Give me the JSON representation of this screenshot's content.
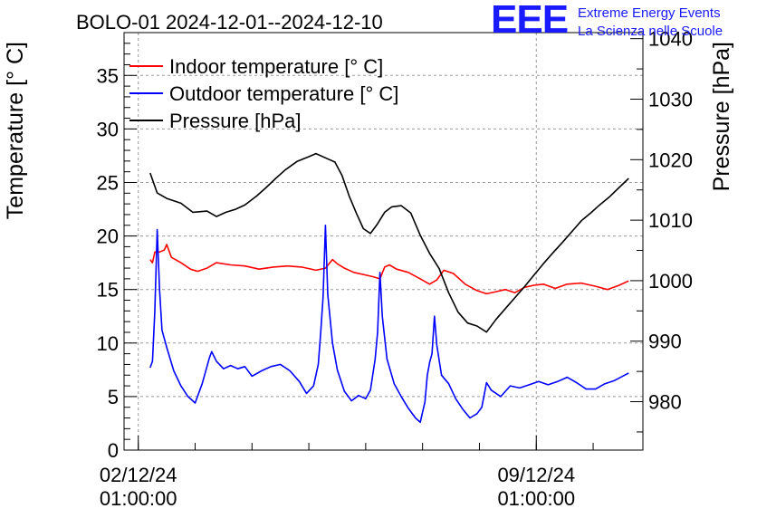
{
  "chart_data": {
    "type": "line",
    "title": "BOLO-01 2024-12-01--2024-12-10",
    "ylabel": "Temperature [° C]",
    "y2label": "Pressure [hPa]",
    "xlabel": "",
    "ylim": [
      0,
      39
    ],
    "y2lim": [
      972,
      1041
    ],
    "xlim": [
      "2024-12-01T19:00",
      "2024-12-10T22:00"
    ],
    "grid": true,
    "legend_position": "top-left",
    "yticks": [
      0,
      5,
      10,
      15,
      20,
      25,
      30,
      35
    ],
    "y2ticks": [
      980,
      990,
      1000,
      1010,
      1020,
      1030,
      1040
    ],
    "xticks": [
      {
        "t": "2024-12-02T01:00",
        "date": "02/12/24",
        "time": "01:00:00"
      },
      {
        "t": "2024-12-09T01:00",
        "date": "09/12/24",
        "time": "01:00:00"
      }
    ],
    "series": [
      {
        "name": "Indoor temperature [° C]",
        "axis": "left",
        "color": "#ff0000",
        "points": [
          [
            "2024-12-02T06:00",
            17.8
          ],
          [
            "2024-12-02T07:00",
            17.5
          ],
          [
            "2024-12-02T08:00",
            18.5
          ],
          [
            "2024-12-02T10:00",
            18.5
          ],
          [
            "2024-12-02T12:00",
            18.7
          ],
          [
            "2024-12-02T13:00",
            19.2
          ],
          [
            "2024-12-02T15:00",
            18.0
          ],
          [
            "2024-12-02T19:00",
            17.5
          ],
          [
            "2024-12-02T23:00",
            16.9
          ],
          [
            "2024-12-03T02:00",
            16.7
          ],
          [
            "2024-12-03T06:00",
            17.0
          ],
          [
            "2024-12-03T10:00",
            17.5
          ],
          [
            "2024-12-03T16:00",
            17.3
          ],
          [
            "2024-12-03T22:00",
            17.2
          ],
          [
            "2024-12-04T04:00",
            16.9
          ],
          [
            "2024-12-04T10:00",
            17.1
          ],
          [
            "2024-12-04T16:00",
            17.2
          ],
          [
            "2024-12-04T22:00",
            17.1
          ],
          [
            "2024-12-05T04:00",
            16.8
          ],
          [
            "2024-12-05T08:00",
            17.0
          ],
          [
            "2024-12-05T11:00",
            17.8
          ],
          [
            "2024-12-05T13:00",
            17.4
          ],
          [
            "2024-12-05T16:00",
            17.0
          ],
          [
            "2024-12-05T20:00",
            16.6
          ],
          [
            "2024-12-06T00:00",
            16.4
          ],
          [
            "2024-12-06T04:00",
            16.2
          ],
          [
            "2024-12-06T07:00",
            16.0
          ],
          [
            "2024-12-06T09:00",
            17.1
          ],
          [
            "2024-12-06T11:00",
            17.3
          ],
          [
            "2024-12-06T14:00",
            16.9
          ],
          [
            "2024-12-06T19:00",
            16.6
          ],
          [
            "2024-12-07T00:00",
            16.0
          ],
          [
            "2024-12-07T04:00",
            15.5
          ],
          [
            "2024-12-07T07:00",
            15.9
          ],
          [
            "2024-12-07T10:00",
            16.8
          ],
          [
            "2024-12-07T14:00",
            16.5
          ],
          [
            "2024-12-07T19:00",
            15.5
          ],
          [
            "2024-12-08T00:00",
            14.9
          ],
          [
            "2024-12-08T04:00",
            14.6
          ],
          [
            "2024-12-08T08:00",
            14.8
          ],
          [
            "2024-12-08T12:00",
            15.0
          ],
          [
            "2024-12-08T16:00",
            14.7
          ],
          [
            "2024-12-08T20:00",
            15.2
          ],
          [
            "2024-12-09T00:00",
            15.4
          ],
          [
            "2024-12-09T04:00",
            15.5
          ],
          [
            "2024-12-09T09:00",
            15.1
          ],
          [
            "2024-12-09T14:00",
            15.5
          ],
          [
            "2024-12-09T20:00",
            15.6
          ],
          [
            "2024-12-10T02:00",
            15.3
          ],
          [
            "2024-12-10T07:00",
            15.0
          ],
          [
            "2024-12-10T12:00",
            15.4
          ],
          [
            "2024-12-10T16:00",
            15.8
          ]
        ]
      },
      {
        "name": "Outdoor temperature [° C]",
        "axis": "left",
        "color": "#0000ff",
        "points": [
          [
            "2024-12-02T06:00",
            7.7
          ],
          [
            "2024-12-02T07:00",
            8.3
          ],
          [
            "2024-12-02T08:00",
            13.0
          ],
          [
            "2024-12-02T09:00",
            20.6
          ],
          [
            "2024-12-02T10:00",
            15.0
          ],
          [
            "2024-12-02T11:00",
            11.2
          ],
          [
            "2024-12-02T13:00",
            9.6
          ],
          [
            "2024-12-02T16:00",
            7.4
          ],
          [
            "2024-12-02T19:00",
            6.0
          ],
          [
            "2024-12-02T22:00",
            5.0
          ],
          [
            "2024-12-03T01:00",
            4.4
          ],
          [
            "2024-12-03T04:00",
            6.2
          ],
          [
            "2024-12-03T07:00",
            8.6
          ],
          [
            "2024-12-03T08:00",
            9.2
          ],
          [
            "2024-12-03T10:00",
            8.3
          ],
          [
            "2024-12-03T13:00",
            7.6
          ],
          [
            "2024-12-03T16:00",
            7.9
          ],
          [
            "2024-12-03T19:00",
            7.6
          ],
          [
            "2024-12-03T22:00",
            7.8
          ],
          [
            "2024-12-04T01:00",
            6.9
          ],
          [
            "2024-12-04T05:00",
            7.4
          ],
          [
            "2024-12-04T09:00",
            7.8
          ],
          [
            "2024-12-04T13:00",
            8.0
          ],
          [
            "2024-12-04T17:00",
            7.4
          ],
          [
            "2024-12-04T21:00",
            6.4
          ],
          [
            "2024-12-05T00:00",
            5.3
          ],
          [
            "2024-12-05T03:00",
            6.0
          ],
          [
            "2024-12-05T05:00",
            8.0
          ],
          [
            "2024-12-05T06:00",
            11.0
          ],
          [
            "2024-12-05T07:00",
            14.3
          ],
          [
            "2024-12-05T08:00",
            21.0
          ],
          [
            "2024-12-05T09:00",
            14.5
          ],
          [
            "2024-12-05T11:00",
            10.0
          ],
          [
            "2024-12-05T13:00",
            7.5
          ],
          [
            "2024-12-05T16:00",
            5.5
          ],
          [
            "2024-12-05T19:00",
            4.6
          ],
          [
            "2024-12-05T22:00",
            5.1
          ],
          [
            "2024-12-06T01:00",
            4.8
          ],
          [
            "2024-12-06T03:00",
            5.6
          ],
          [
            "2024-12-06T05:00",
            8.5
          ],
          [
            "2024-12-06T06:00",
            11.0
          ],
          [
            "2024-12-06T07:00",
            16.6
          ],
          [
            "2024-12-06T08:00",
            12.5
          ],
          [
            "2024-12-06T10:00",
            8.5
          ],
          [
            "2024-12-06T13:00",
            6.2
          ],
          [
            "2024-12-06T16:00",
            5.0
          ],
          [
            "2024-12-06T19:00",
            3.9
          ],
          [
            "2024-12-06T22:00",
            3.0
          ],
          [
            "2024-12-07T00:00",
            2.6
          ],
          [
            "2024-12-07T02:00",
            4.5
          ],
          [
            "2024-12-07T03:00",
            7.0
          ],
          [
            "2024-12-07T04:00",
            8.2
          ],
          [
            "2024-12-07T05:00",
            9.0
          ],
          [
            "2024-12-07T06:00",
            12.5
          ],
          [
            "2024-12-07T07:00",
            9.8
          ],
          [
            "2024-12-07T09:00",
            7.0
          ],
          [
            "2024-12-07T12:00",
            6.2
          ],
          [
            "2024-12-07T15:00",
            4.8
          ],
          [
            "2024-12-07T18:00",
            3.8
          ],
          [
            "2024-12-07T21:00",
            3.0
          ],
          [
            "2024-12-08T00:00",
            3.4
          ],
          [
            "2024-12-08T02:00",
            4.0
          ],
          [
            "2024-12-08T04:00",
            6.3
          ],
          [
            "2024-12-08T06:00",
            5.6
          ],
          [
            "2024-12-08T10:00",
            5.0
          ],
          [
            "2024-12-08T14:00",
            6.0
          ],
          [
            "2024-12-08T18:00",
            5.8
          ],
          [
            "2024-12-08T22:00",
            6.1
          ],
          [
            "2024-12-09T02:00",
            6.4
          ],
          [
            "2024-12-09T06:00",
            6.1
          ],
          [
            "2024-12-09T10:00",
            6.4
          ],
          [
            "2024-12-09T14:00",
            6.8
          ],
          [
            "2024-12-09T18:00",
            6.3
          ],
          [
            "2024-12-09T22:00",
            5.7
          ],
          [
            "2024-12-10T02:00",
            5.7
          ],
          [
            "2024-12-10T06:00",
            6.2
          ],
          [
            "2024-12-10T10:00",
            6.5
          ],
          [
            "2024-12-10T16:00",
            7.2
          ]
        ]
      },
      {
        "name": "Pressure [hPa]",
        "axis": "right",
        "color": "#000000",
        "points": [
          [
            "2024-12-02T06:00",
            1017.8
          ],
          [
            "2024-12-02T09:00",
            1014.5
          ],
          [
            "2024-12-02T13:00",
            1013.6
          ],
          [
            "2024-12-02T19:00",
            1012.8
          ],
          [
            "2024-12-03T00:00",
            1011.3
          ],
          [
            "2024-12-03T06:00",
            1011.5
          ],
          [
            "2024-12-03T10:00",
            1010.6
          ],
          [
            "2024-12-03T14:00",
            1011.3
          ],
          [
            "2024-12-03T18:00",
            1011.8
          ],
          [
            "2024-12-03T22:00",
            1012.5
          ],
          [
            "2024-12-04T03:00",
            1014.0
          ],
          [
            "2024-12-04T07:00",
            1015.4
          ],
          [
            "2024-12-04T11:00",
            1016.9
          ],
          [
            "2024-12-04T15:00",
            1018.3
          ],
          [
            "2024-12-04T20:00",
            1019.7
          ],
          [
            "2024-12-05T01:00",
            1020.5
          ],
          [
            "2024-12-05T04:00",
            1021.0
          ],
          [
            "2024-12-05T08:00",
            1020.3
          ],
          [
            "2024-12-05T12:00",
            1019.6
          ],
          [
            "2024-12-05T15:00",
            1017.4
          ],
          [
            "2024-12-05T18:00",
            1014.0
          ],
          [
            "2024-12-05T21:00",
            1011.2
          ],
          [
            "2024-12-06T00:00",
            1008.6
          ],
          [
            "2024-12-06T03:00",
            1007.8
          ],
          [
            "2024-12-06T06:00",
            1009.4
          ],
          [
            "2024-12-06T09:00",
            1011.3
          ],
          [
            "2024-12-06T12:00",
            1012.2
          ],
          [
            "2024-12-06T16:00",
            1012.4
          ],
          [
            "2024-12-06T20:00",
            1011.2
          ],
          [
            "2024-12-07T00:00",
            1007.5
          ],
          [
            "2024-12-07T04:00",
            1004.5
          ],
          [
            "2024-12-07T08:00",
            1002.0
          ],
          [
            "2024-12-07T12:00",
            998.0
          ],
          [
            "2024-12-07T16:00",
            994.8
          ],
          [
            "2024-12-07T20:00",
            993.0
          ],
          [
            "2024-12-08T00:00",
            992.5
          ],
          [
            "2024-12-08T04:00",
            991.5
          ],
          [
            "2024-12-08T08:00",
            993.6
          ],
          [
            "2024-12-08T12:00",
            995.4
          ],
          [
            "2024-12-08T16:00",
            997.2
          ],
          [
            "2024-12-08T20:00",
            999.0
          ],
          [
            "2024-12-09T00:00",
            1000.9
          ],
          [
            "2024-12-09T04:00",
            1002.8
          ],
          [
            "2024-12-09T08:00",
            1004.6
          ],
          [
            "2024-12-09T12:00",
            1006.3
          ],
          [
            "2024-12-09T16:00",
            1008.1
          ],
          [
            "2024-12-09T20:00",
            1009.9
          ],
          [
            "2024-12-10T00:00",
            1011.2
          ],
          [
            "2024-12-10T04:00",
            1012.6
          ],
          [
            "2024-12-10T08:00",
            1013.9
          ],
          [
            "2024-12-10T12:00",
            1015.4
          ],
          [
            "2024-12-10T16:00",
            1016.9
          ]
        ]
      }
    ]
  },
  "logo": {
    "mark": "EEE",
    "line1": "Extreme Energy Events",
    "line2": "La Scienza nelle Scuole"
  }
}
